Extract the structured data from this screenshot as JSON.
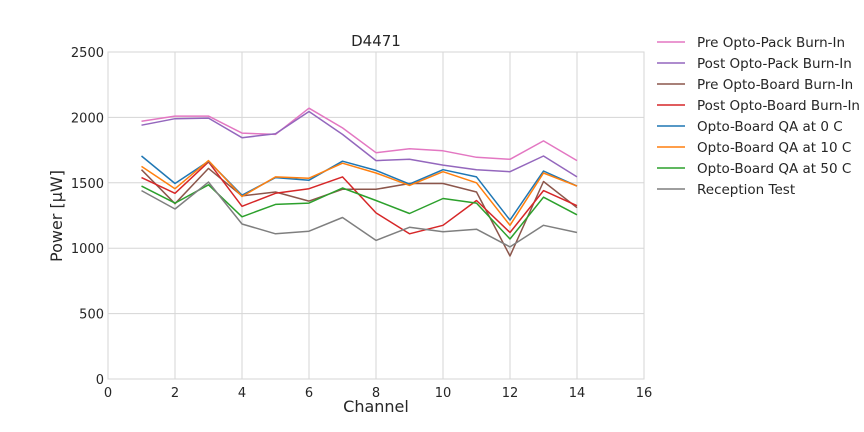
{
  "chart_data": {
    "type": "line",
    "title": "D4471",
    "xlabel": "Channel",
    "ylabel": "Power [μW]",
    "xlim": [
      0,
      16
    ],
    "ylim": [
      0,
      2500
    ],
    "xticks": [
      "0",
      "2",
      "4",
      "6",
      "8",
      "10",
      "12",
      "14",
      "16"
    ],
    "yticks": [
      "0",
      "500",
      "1000",
      "1500",
      "2000",
      "2500"
    ],
    "grid": true,
    "legend_position": "outside-right",
    "x": [
      1,
      2,
      3,
      4,
      5,
      6,
      7,
      8,
      9,
      10,
      11,
      12,
      13,
      14
    ],
    "series": [
      {
        "name": "Pre Opto-Pack Burn-In",
        "color": "#e377c2",
        "values": [
          1970,
          2010,
          2010,
          1880,
          1870,
          2070,
          1920,
          1730,
          1760,
          1745,
          1695,
          1680,
          1820,
          1670
        ]
      },
      {
        "name": "Post Opto-Pack Burn-In",
        "color": "#9467bd",
        "values": [
          1940,
          1990,
          1995,
          1845,
          1875,
          2045,
          1870,
          1670,
          1680,
          1635,
          1600,
          1585,
          1705,
          1545
        ]
      },
      {
        "name": "Pre Opto-Board Burn-In",
        "color": "#8c564b",
        "values": [
          1600,
          1340,
          1610,
          1400,
          1430,
          1360,
          1450,
          1450,
          1495,
          1495,
          1430,
          940,
          1510,
          1310
        ]
      },
      {
        "name": "Post Opto-Board Burn-In",
        "color": "#d62728",
        "values": [
          1540,
          1420,
          1660,
          1320,
          1420,
          1455,
          1545,
          1270,
          1110,
          1175,
          1365,
          1120,
          1440,
          1325
        ]
      },
      {
        "name": "Opto-Board QA at 0 C",
        "color": "#1f77b4",
        "values": [
          1705,
          1495,
          1665,
          1405,
          1540,
          1520,
          1665,
          1595,
          1490,
          1600,
          1545,
          1215,
          1590,
          1475
        ]
      },
      {
        "name": "Opto-Board QA at 10 C",
        "color": "#ff7f0e",
        "values": [
          1625,
          1455,
          1670,
          1395,
          1545,
          1535,
          1650,
          1575,
          1480,
          1585,
          1500,
          1175,
          1575,
          1475
        ]
      },
      {
        "name": "Opto-Board QA at 50 C",
        "color": "#2ca02c",
        "values": [
          1475,
          1345,
          1485,
          1240,
          1335,
          1345,
          1460,
          1365,
          1265,
          1380,
          1345,
          1070,
          1390,
          1255
        ]
      },
      {
        "name": "Reception Test",
        "color": "#7f7f7f",
        "values": [
          1440,
          1300,
          1505,
          1185,
          1110,
          1130,
          1235,
          1060,
          1160,
          1125,
          1145,
          1010,
          1175,
          1120
        ]
      }
    ]
  }
}
